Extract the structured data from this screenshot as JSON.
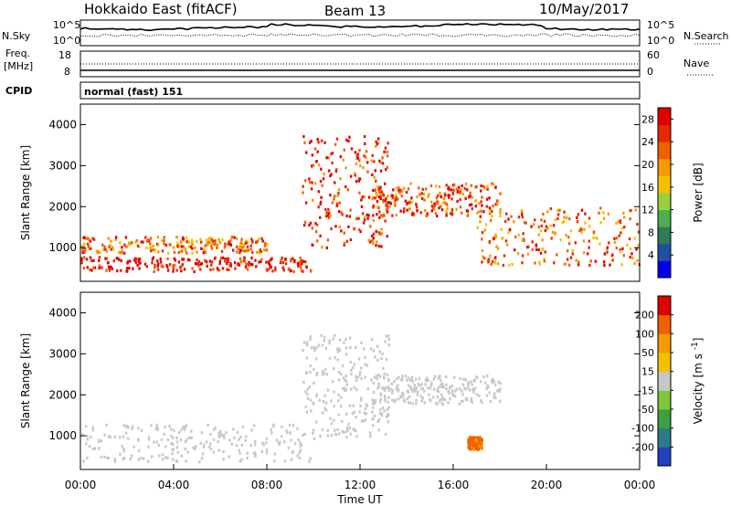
{
  "header": {
    "radar": "Hokkaido East (fitACF)",
    "beam": "Beam 13",
    "date": "10/May/2017"
  },
  "noise_panel": {
    "left_label": "N.Sky",
    "right_label": "N.Search",
    "y_ticks_left": [
      "10^5",
      "10^0"
    ],
    "y_ticks_right": [
      "10^5",
      "10^0"
    ]
  },
  "freq_panel": {
    "left_label_line1": "Freq.",
    "left_label_line2": "[MHz]",
    "right_label": "Nave",
    "y_ticks_left": [
      "18",
      "8"
    ],
    "y_ticks_right": [
      "60",
      "0"
    ]
  },
  "cpid_panel": {
    "left_label": "CPID",
    "text": "normal (fast) 151"
  },
  "chart_data": [
    {
      "type": "heatmap",
      "quantity": "Power",
      "ylabel": "Slant Range [km]",
      "ylim": [
        180,
        4500
      ],
      "yticks": [
        1000,
        2000,
        3000,
        4000
      ],
      "xlim_hours": [
        0,
        24
      ],
      "colorbar": {
        "label": "Power [dB]",
        "ticks": [
          "4",
          "8",
          "12",
          "16",
          "20",
          "24",
          "28"
        ],
        "range": [
          0,
          30
        ],
        "colors": [
          "#0000f0",
          "#1f4fa0",
          "#2e7a5a",
          "#4cae4c",
          "#9ad040",
          "#f2c200",
          "#f59a00",
          "#f06000",
          "#e82800",
          "#e00000"
        ]
      },
      "features": [
        {
          "desc": "E-region band",
          "time_hours": [
            0,
            9.9
          ],
          "range_km": [
            450,
            800
          ],
          "power_db": 28
        },
        {
          "desc": "F-region returns",
          "time_hours": [
            0,
            8
          ],
          "range_km": [
            900,
            1300
          ],
          "power_db": 22
        },
        {
          "desc": "ascending arc",
          "time_hours": [
            9.5,
            13.2
          ],
          "range_km": [
            1000,
            3800
          ],
          "power_db": 26
        },
        {
          "desc": "plateau",
          "time_hours": [
            12.5,
            18
          ],
          "range_km": [
            1800,
            2600
          ],
          "power_db": 24
        },
        {
          "desc": "descending band",
          "time_hours": [
            17,
            24
          ],
          "range_km": [
            600,
            2000
          ],
          "power_db": 22
        }
      ]
    },
    {
      "type": "heatmap",
      "quantity": "Velocity",
      "ylabel": "Slant Range [km]",
      "ylim": [
        180,
        4500
      ],
      "yticks": [
        1000,
        2000,
        3000,
        4000
      ],
      "xlim_hours": [
        0,
        24
      ],
      "colorbar": {
        "label": "Velocity [m s^-1]",
        "ticks": [
          "200",
          "100",
          "50",
          "15",
          "-15",
          "-50",
          "-100",
          "-200"
        ],
        "range": [
          -250,
          250
        ],
        "colors": [
          "#2040c0",
          "#2e7a8a",
          "#3aa040",
          "#7cc83a",
          "#c8c8c8",
          "#f2c200",
          "#f59a00",
          "#f06000",
          "#e00000"
        ]
      },
      "features": [
        {
          "desc": "ground scatter (grey)",
          "time_hours": [
            0,
            10
          ],
          "range_km": [
            400,
            1300
          ],
          "velocity": 0
        },
        {
          "desc": "ground scatter arc",
          "time_hours": [
            9.5,
            13.2
          ],
          "range_km": [
            1000,
            3500
          ],
          "velocity": 0
        },
        {
          "desc": "ground scatter plateau",
          "time_hours": [
            12.5,
            18
          ],
          "range_km": [
            1800,
            2500
          ],
          "velocity": 0
        },
        {
          "desc": "strong flow patch",
          "time_hours": [
            16.6,
            17.2
          ],
          "range_km": [
            700,
            1000
          ],
          "velocity": 150
        }
      ]
    }
  ],
  "x_axis": {
    "ticks": [
      "00:00",
      "04:00",
      "08:00",
      "12:00",
      "16:00",
      "20:00",
      "00:00"
    ],
    "label": "Time UT"
  }
}
